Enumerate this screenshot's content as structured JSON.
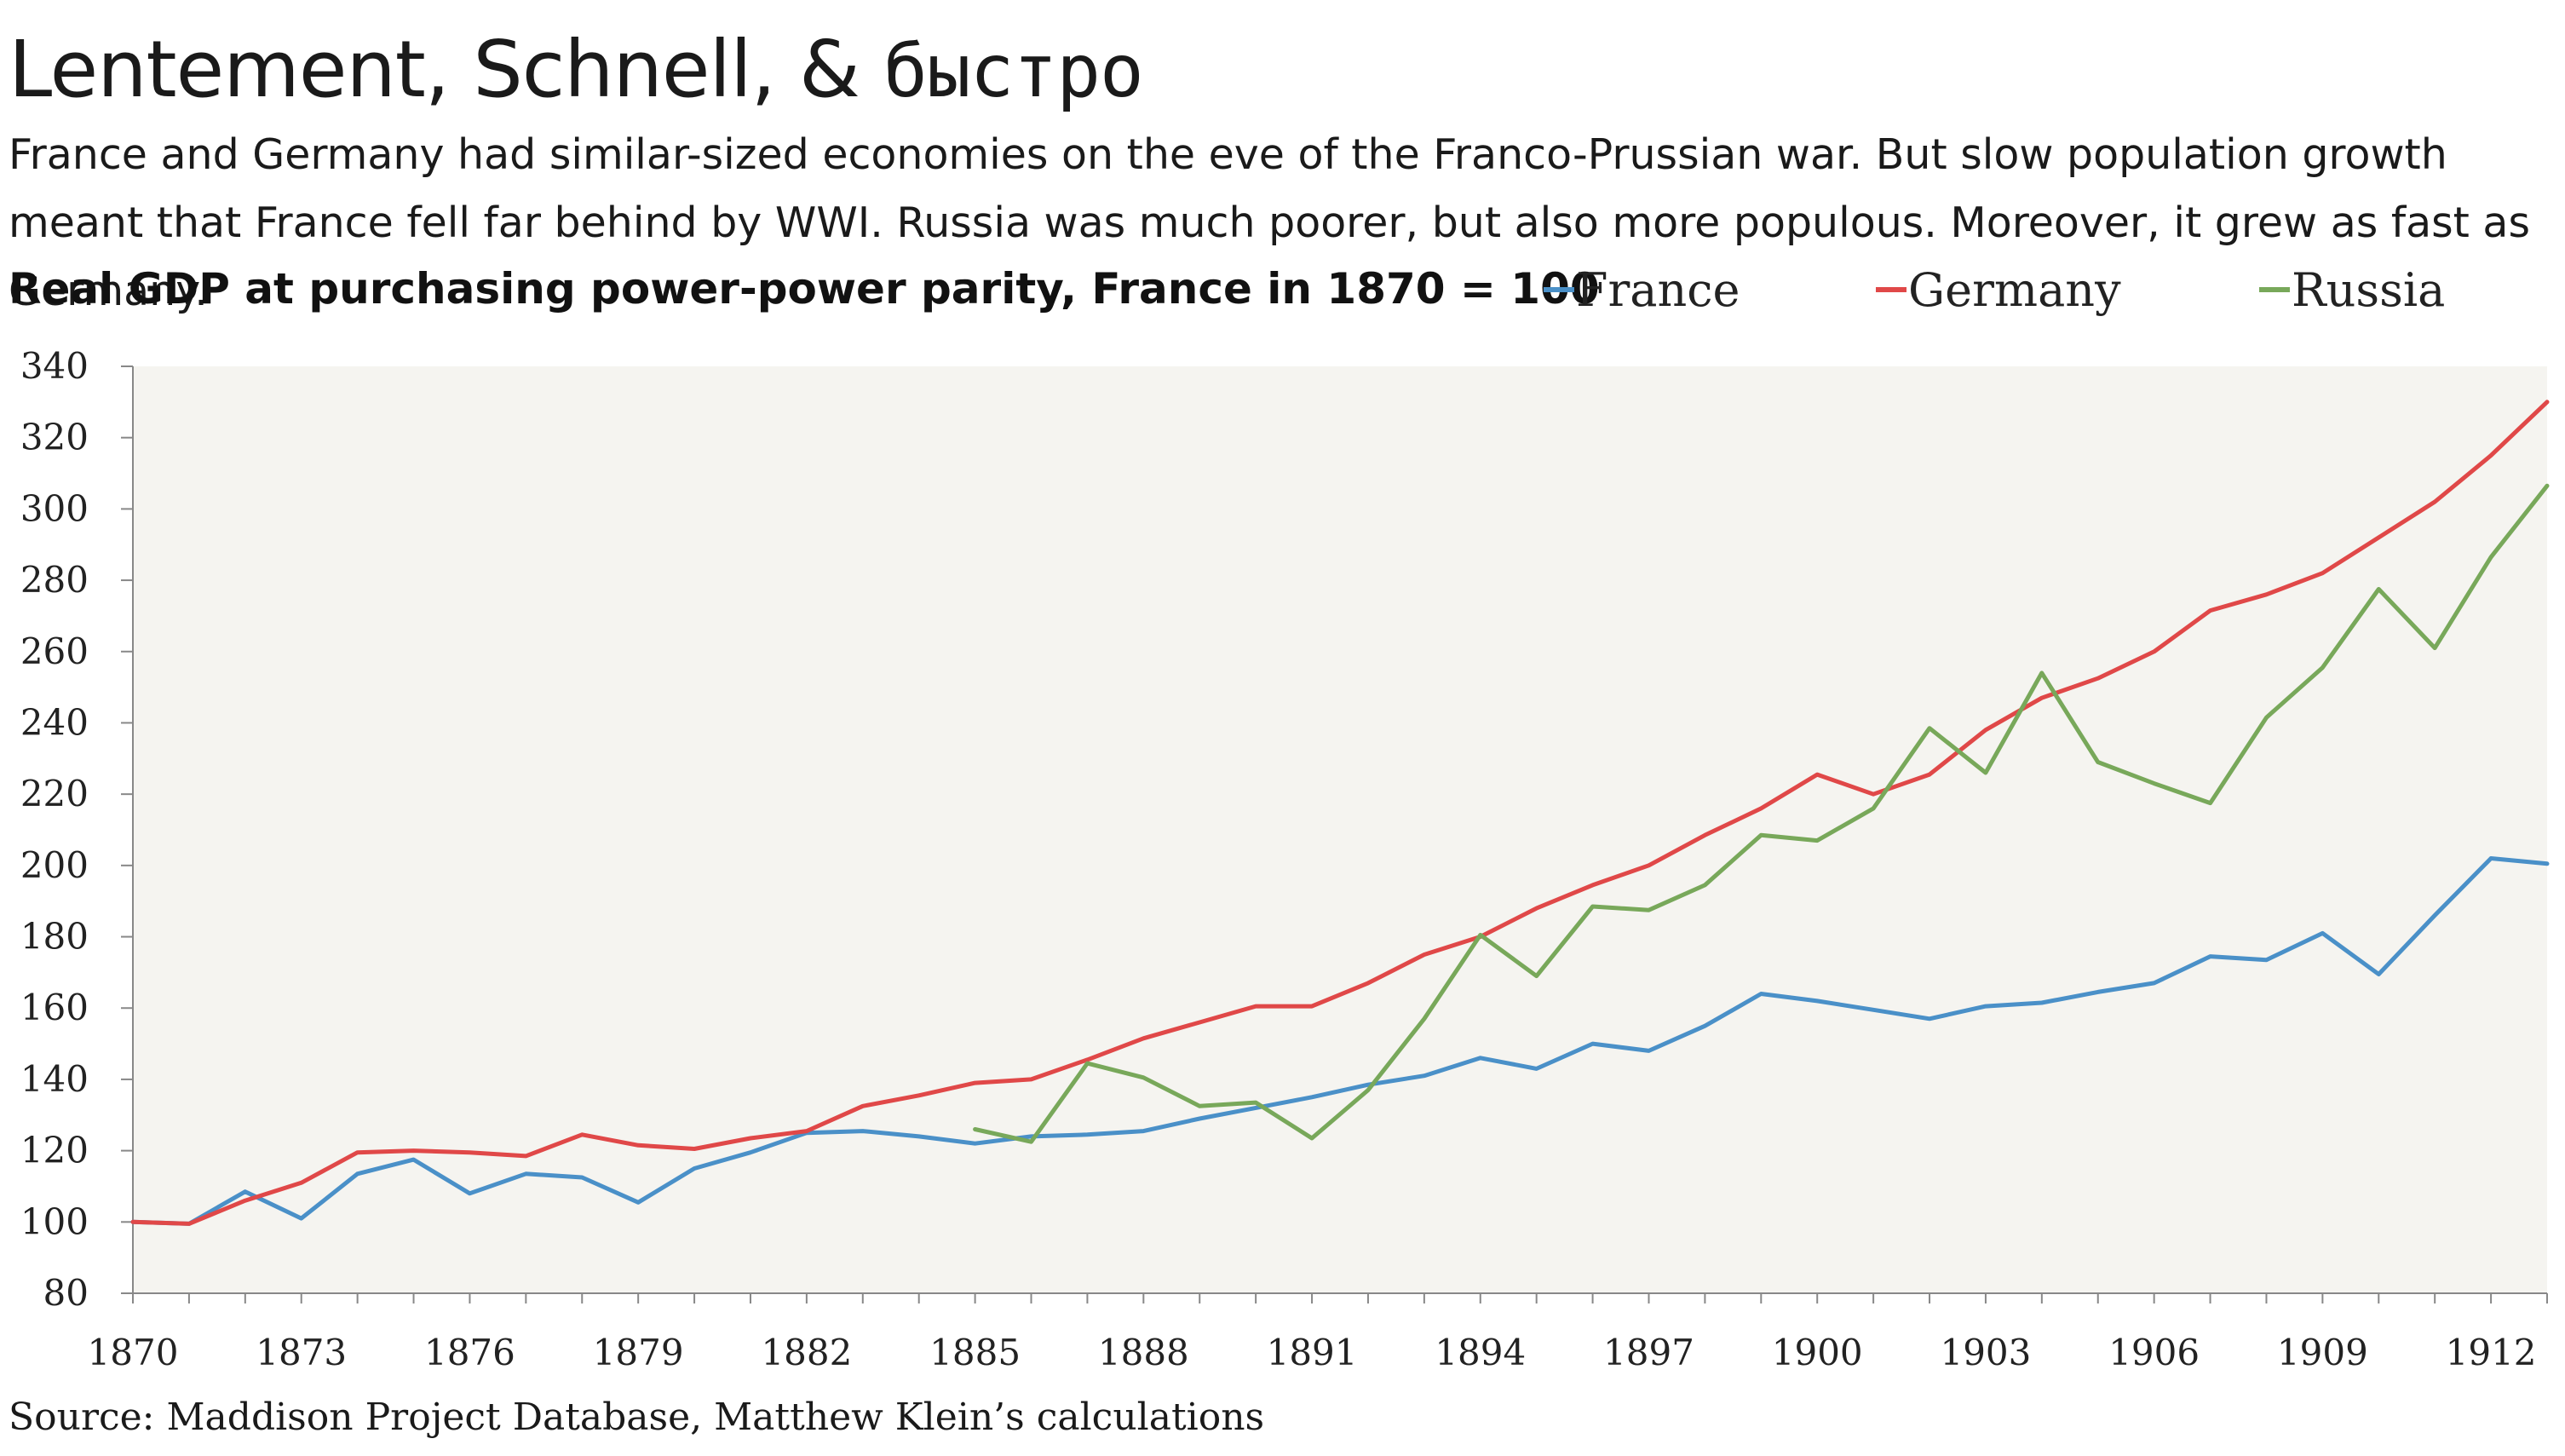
{
  "header": {
    "title_main": "Lentement, Schnell, & ",
    "title_russian": "быстро",
    "subtitle": "France and Germany had similar-sized economies on the eve of the Franco-Prussian war. But slow population growth meant that France fell far behind by WWI. Russia was much poorer, but also more populous. Moreover, it grew as fast as Germany.",
    "chart_label": "Real GDP at purchasing power-power parity, France in 1870 = 100"
  },
  "footer": {
    "source": "Source: Maddison Project Database, Matthew Klein’s calculations"
  },
  "colors": {
    "france": "#4a90c8",
    "germany": "#e04848",
    "russia": "#78a85a",
    "plot_bg": "#f5f4f0"
  },
  "chart_data": {
    "type": "line",
    "title": "",
    "xlabel": "",
    "ylabel": "",
    "xlim": [
      1870,
      1913
    ],
    "ylim": [
      80,
      340
    ],
    "y_ticks": [
      80,
      100,
      120,
      140,
      160,
      180,
      200,
      220,
      240,
      260,
      280,
      300,
      320,
      340
    ],
    "x_ticks": [
      1870,
      1873,
      1876,
      1879,
      1882,
      1885,
      1888,
      1891,
      1894,
      1897,
      1900,
      1903,
      1906,
      1909,
      1912
    ],
    "grid": false,
    "legend_position": "top-right",
    "series": [
      {
        "name": "France",
        "color": "#4a90c8",
        "x": [
          1870,
          1871,
          1872,
          1873,
          1874,
          1875,
          1876,
          1877,
          1878,
          1879,
          1880,
          1881,
          1882,
          1883,
          1884,
          1885,
          1886,
          1887,
          1888,
          1889,
          1890,
          1891,
          1892,
          1893,
          1894,
          1895,
          1896,
          1897,
          1898,
          1899,
          1900,
          1901,
          1902,
          1903,
          1904,
          1905,
          1906,
          1907,
          1908,
          1909,
          1910,
          1911,
          1912,
          1913
        ],
        "values": [
          100,
          99.5,
          108.5,
          101,
          113.5,
          117.5,
          108,
          113.5,
          112.5,
          105.5,
          115,
          119.5,
          125,
          125.5,
          124,
          122,
          124,
          124.5,
          125.5,
          129,
          132,
          135,
          138.5,
          141,
          146,
          143,
          150,
          148,
          155,
          164,
          162,
          159.5,
          157,
          160.5,
          161.5,
          164.5,
          167,
          174.5,
          173.5,
          181,
          169.5,
          186,
          202,
          200.5
        ]
      },
      {
        "name": "Germany",
        "color": "#e04848",
        "x": [
          1870,
          1871,
          1872,
          1873,
          1874,
          1875,
          1876,
          1877,
          1878,
          1879,
          1880,
          1881,
          1882,
          1883,
          1884,
          1885,
          1886,
          1887,
          1888,
          1889,
          1890,
          1891,
          1892,
          1893,
          1894,
          1895,
          1896,
          1897,
          1898,
          1899,
          1900,
          1901,
          1902,
          1903,
          1904,
          1905,
          1906,
          1907,
          1908,
          1909,
          1910,
          1911,
          1912,
          1913
        ],
        "values": [
          100,
          99.5,
          106,
          111,
          119.5,
          120,
          119.5,
          118.5,
          124.5,
          121.5,
          120.5,
          123.5,
          125.5,
          132.5,
          135.5,
          139,
          140,
          145.5,
          151.5,
          156,
          160.5,
          160.5,
          167,
          175,
          180,
          188,
          194.5,
          200,
          208.5,
          216,
          225.5,
          220,
          225.5,
          238,
          247,
          252.5,
          260,
          271.5,
          276,
          282,
          292,
          302,
          315,
          330
        ]
      },
      {
        "name": "Russia",
        "color": "#78a85a",
        "x": [
          1885,
          1886,
          1887,
          1888,
          1889,
          1890,
          1891,
          1892,
          1893,
          1894,
          1895,
          1896,
          1897,
          1898,
          1899,
          1900,
          1901,
          1902,
          1903,
          1904,
          1905,
          1906,
          1907,
          1908,
          1909,
          1910,
          1911,
          1912,
          1913
        ],
        "values": [
          126,
          122.5,
          144.5,
          140.5,
          132.5,
          133.5,
          123.5,
          137,
          157,
          180.5,
          169,
          188.5,
          187.5,
          194.5,
          208.5,
          207,
          216,
          238.5,
          226,
          254,
          229,
          223,
          217.5,
          241.5,
          255.5,
          277.5,
          261,
          286.5,
          306.5
        ]
      }
    ]
  }
}
